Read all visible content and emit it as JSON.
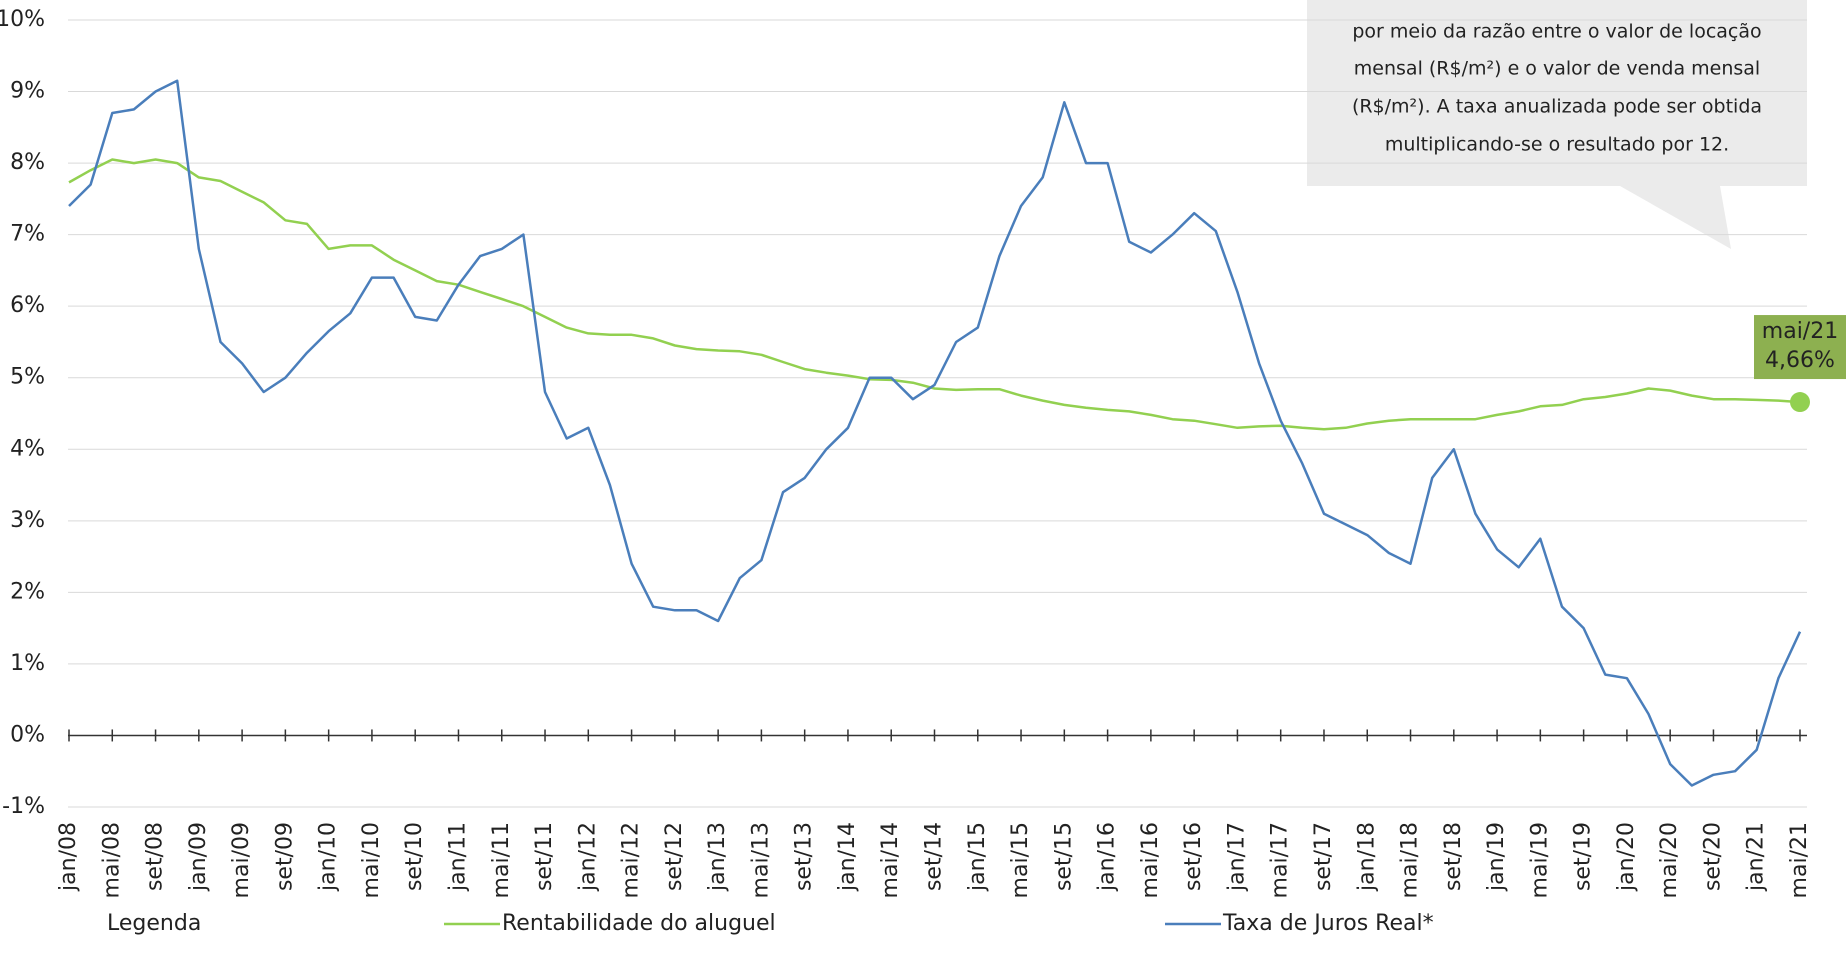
{
  "chart_data": {
    "type": "line",
    "categories": [
      "jan/08",
      null,
      "mai/08",
      null,
      "set/08",
      null,
      "jan/09",
      null,
      "mai/09",
      null,
      "set/09",
      null,
      "jan/10",
      null,
      "mai/10",
      null,
      "set/10",
      null,
      "jan/11",
      null,
      "mai/11",
      null,
      "set/11",
      null,
      "jan/12",
      null,
      "mai/12",
      null,
      "set/12",
      null,
      "jan/13",
      null,
      "mai/13",
      null,
      "set/13",
      null,
      "jan/14",
      null,
      "mai/14",
      null,
      "set/14",
      null,
      "jan/15",
      null,
      "mai/15",
      null,
      "set/15",
      null,
      "jan/16",
      null,
      "mai/16",
      null,
      "set/16",
      null,
      "jan/17",
      null,
      "mai/17",
      null,
      "set/17",
      null,
      "jan/18",
      null,
      "mai/18",
      null,
      "set/18",
      null,
      "jan/19",
      null,
      "mai/19",
      null,
      "set/19",
      null,
      "jan/20",
      null,
      "mai/20",
      null,
      "set/20",
      null,
      "jan/21",
      null,
      "mai/21"
    ],
    "series": [
      {
        "name": "Rentabilidade do aluguel",
        "color": "#92d050",
        "values": [
          7.73,
          7.9,
          8.05,
          8.0,
          8.05,
          8.0,
          7.8,
          7.75,
          7.6,
          7.45,
          7.2,
          7.15,
          6.8,
          6.85,
          6.85,
          6.65,
          6.5,
          6.35,
          6.3,
          6.2,
          6.1,
          6.0,
          5.85,
          5.7,
          5.62,
          5.6,
          5.6,
          5.55,
          5.45,
          5.4,
          5.38,
          5.37,
          5.32,
          5.22,
          5.12,
          5.07,
          5.03,
          4.98,
          4.97,
          4.93,
          4.85,
          4.83,
          4.84,
          4.84,
          4.75,
          4.68,
          4.62,
          4.58,
          4.55,
          4.53,
          4.48,
          4.42,
          4.4,
          4.35,
          4.3,
          4.32,
          4.33,
          4.3,
          4.28,
          4.3,
          4.36,
          4.4,
          4.42,
          4.42,
          4.42,
          4.42,
          4.48,
          4.53,
          4.6,
          4.62,
          4.7,
          4.73,
          4.78,
          4.85,
          4.82,
          4.75,
          4.7,
          4.7,
          4.69,
          4.68,
          4.66
        ],
        "value_labels": [
          null,
          null,
          null,
          null,
          null,
          null,
          null,
          null,
          null,
          null,
          null,
          null,
          null,
          null,
          null,
          null,
          null,
          null,
          null,
          null,
          null,
          null,
          null,
          null,
          null,
          null,
          null,
          null,
          null,
          null,
          null,
          null,
          null,
          null,
          null,
          null,
          null,
          null,
          null,
          null,
          null,
          null,
          null,
          null,
          null,
          null,
          null,
          null,
          null,
          null,
          null,
          null,
          null,
          null,
          null,
          null,
          null,
          null,
          null,
          null,
          null,
          null,
          null,
          null,
          null,
          null,
          null,
          null,
          null,
          null,
          null,
          null,
          null,
          null,
          null,
          null,
          null,
          null,
          null,
          null,
          "4,66%"
        ]
      },
      {
        "name": "Taxa de Juros Real*",
        "color": "#4a7ebb",
        "values": [
          7.4,
          7.7,
          8.7,
          8.75,
          9.0,
          9.15,
          6.8,
          5.5,
          5.2,
          4.8,
          5.0,
          5.35,
          5.65,
          5.9,
          6.4,
          6.4,
          5.85,
          5.8,
          6.3,
          6.7,
          6.8,
          7.0,
          4.8,
          4.15,
          4.3,
          3.5,
          2.4,
          1.8,
          1.75,
          1.75,
          1.6,
          2.2,
          2.45,
          3.4,
          3.6,
          4.0,
          4.3,
          5.0,
          5.0,
          4.7,
          4.9,
          5.5,
          5.7,
          6.7,
          7.4,
          7.8,
          8.85,
          8.0,
          8.0,
          6.9,
          6.75,
          7.0,
          7.3,
          7.05,
          6.2,
          5.2,
          4.4,
          3.8,
          3.1,
          2.95,
          2.8,
          2.55,
          2.4,
          3.6,
          4.0,
          3.1,
          2.6,
          2.35,
          2.75,
          1.8,
          1.5,
          0.85,
          0.8,
          0.3,
          -0.4,
          -0.7,
          -0.55,
          -0.5,
          -0.2,
          0.8,
          1.45
        ]
      }
    ],
    "ylim": [
      -1,
      10
    ],
    "yticks": [
      {
        "value": -1,
        "label": "-1%"
      },
      {
        "value": 0,
        "label": "0%"
      },
      {
        "value": 1,
        "label": "1%"
      },
      {
        "value": 2,
        "label": "2%"
      },
      {
        "value": 3,
        "label": "3%"
      },
      {
        "value": 4,
        "label": "4%"
      },
      {
        "value": 5,
        "label": "5%"
      },
      {
        "value": 6,
        "label": "6%"
      },
      {
        "value": 7,
        "label": "7%"
      },
      {
        "value": 8,
        "label": "8%"
      },
      {
        "value": 9,
        "label": "9%"
      },
      {
        "value": 10,
        "label": "10%"
      }
    ],
    "grid": true,
    "legend_title": "Legenda",
    "annotation": [
      "por meio da razão entre o valor de locação",
      "mensal (R$/m²) e o valor de venda mensal",
      "(R$/m²).  A taxa anualizada pode ser obtida",
      "multiplicando-se  o resultado por 12."
    ]
  }
}
